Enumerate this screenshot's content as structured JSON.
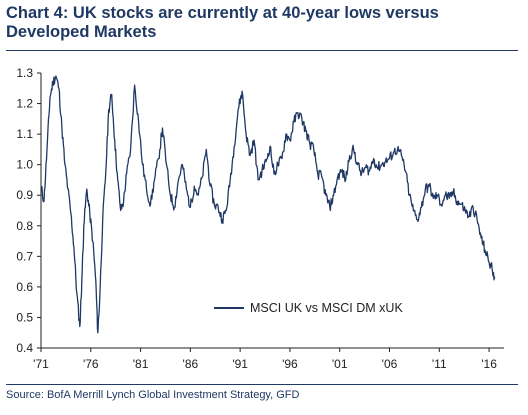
{
  "title": "Chart 4: UK stocks are currently at 40-year lows versus Developed Markets",
  "source": "Source: BofA Merrill Lynch Global Investment Strategy, GFD",
  "colors": {
    "line": "#1f3864",
    "title": "#1f3864",
    "axis": "#222222"
  },
  "chart_data": {
    "type": "line",
    "title": "Chart 4: UK stocks are currently at 40-year lows versus Developed Markets",
    "xlabel": "",
    "ylabel": "",
    "xlim": [
      1971,
      2017.5
    ],
    "ylim": [
      0.4,
      1.3
    ],
    "grid": false,
    "legend_position": "bottom-right",
    "y_ticks": [
      1.3,
      1.2,
      1.1,
      1.0,
      0.9,
      0.8,
      0.7,
      0.6,
      0.5,
      0.4
    ],
    "y_tick_labels": [
      "1.3",
      "1.2",
      "1.1",
      "1.0",
      "0.9",
      "0.8",
      "0.7",
      "0.6",
      "0.5",
      "0.4"
    ],
    "x_ticks": [
      1971,
      1976,
      1981,
      1986,
      1991,
      1996,
      2001,
      2006,
      2011,
      2016
    ],
    "x_tick_labels": [
      "'71",
      "'76",
      "'81",
      "'86",
      "'91",
      "'96",
      "'01",
      "'06",
      "'11",
      "'16"
    ],
    "series": [
      {
        "name": "MSCI UK vs MSCI DM xUK",
        "x": [
          1971.0,
          1971.3,
          1971.6,
          1971.9,
          1972.2,
          1972.5,
          1972.8,
          1973.1,
          1973.4,
          1973.7,
          1974.0,
          1974.3,
          1974.6,
          1974.9,
          1975.1,
          1975.3,
          1975.6,
          1975.9,
          1976.2,
          1976.5,
          1976.7,
          1976.9,
          1977.2,
          1977.5,
          1977.8,
          1978.1,
          1978.4,
          1978.7,
          1979.0,
          1979.3,
          1979.6,
          1980.0,
          1980.4,
          1980.8,
          1981.2,
          1981.6,
          1982.0,
          1982.4,
          1982.8,
          1983.2,
          1983.6,
          1984.0,
          1984.4,
          1984.8,
          1985.2,
          1985.6,
          1986.0,
          1986.4,
          1986.8,
          1987.2,
          1987.6,
          1988.0,
          1988.4,
          1988.8,
          1989.2,
          1989.6,
          1990.0,
          1990.4,
          1990.8,
          1991.2,
          1991.6,
          1992.0,
          1992.4,
          1992.8,
          1993.2,
          1993.6,
          1994.0,
          1994.4,
          1994.8,
          1995.2,
          1995.6,
          1996.0,
          1996.4,
          1996.8,
          1997.2,
          1997.6,
          1998.0,
          1998.4,
          1998.8,
          1999.2,
          1999.6,
          2000.0,
          2000.4,
          2000.8,
          2001.2,
          2001.6,
          2002.0,
          2002.4,
          2002.8,
          2003.2,
          2003.6,
          2004.0,
          2004.4,
          2004.8,
          2005.2,
          2005.6,
          2006.0,
          2006.4,
          2006.8,
          2007.2,
          2007.6,
          2008.0,
          2008.4,
          2008.8,
          2009.2,
          2009.6,
          2010.0,
          2010.4,
          2010.8,
          2011.2,
          2011.6,
          2012.0,
          2012.4,
          2012.8,
          2013.2,
          2013.6,
          2014.0,
          2014.4,
          2014.8,
          2015.2,
          2015.6,
          2016.0,
          2016.3,
          2016.6
        ],
        "values": [
          0.93,
          0.88,
          1.05,
          1.22,
          1.27,
          1.29,
          1.25,
          1.12,
          1.0,
          0.92,
          0.84,
          0.73,
          0.58,
          0.47,
          0.62,
          0.8,
          0.92,
          0.84,
          0.75,
          0.62,
          0.45,
          0.56,
          0.82,
          0.97,
          1.18,
          1.23,
          1.08,
          0.95,
          0.85,
          0.88,
          0.97,
          1.05,
          1.26,
          1.14,
          1.0,
          0.92,
          0.87,
          0.95,
          1.02,
          1.12,
          1.0,
          0.9,
          0.86,
          0.95,
          1.0,
          0.92,
          0.86,
          0.93,
          0.9,
          0.96,
          1.05,
          0.93,
          0.87,
          0.86,
          0.82,
          0.85,
          0.95,
          1.06,
          1.18,
          1.24,
          1.1,
          1.03,
          1.08,
          0.95,
          0.98,
          1.01,
          1.06,
          0.97,
          1.0,
          1.02,
          1.1,
          1.08,
          1.14,
          1.17,
          1.15,
          1.11,
          1.07,
          1.05,
          0.97,
          0.96,
          0.9,
          0.86,
          0.9,
          0.96,
          0.98,
          0.95,
          1.03,
          1.05,
          1.0,
          0.97,
          0.99,
          0.98,
          1.02,
          0.99,
          1.0,
          1.01,
          1.02,
          1.04,
          1.05,
          1.03,
          0.98,
          0.9,
          0.85,
          0.82,
          0.86,
          0.92,
          0.93,
          0.89,
          0.9,
          0.87,
          0.9,
          0.89,
          0.91,
          0.88,
          0.87,
          0.85,
          0.83,
          0.86,
          0.82,
          0.76,
          0.72,
          0.68,
          0.66,
          0.63
        ]
      }
    ]
  }
}
